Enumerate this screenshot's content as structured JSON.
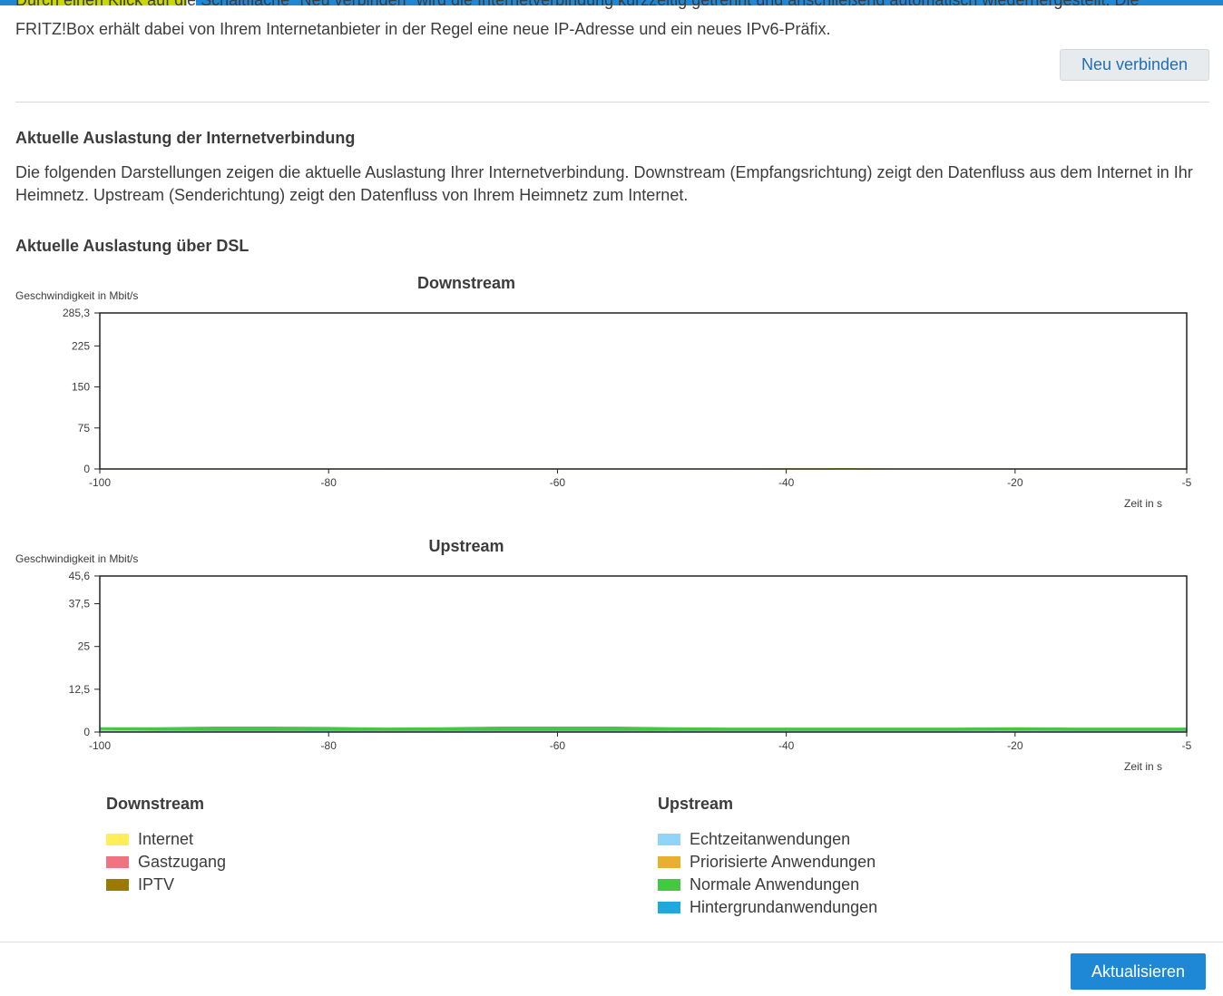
{
  "intro": {
    "cut_line": "Durch einen Klick auf die Schaltfläche \"Neu verbinden\" wird die Internetverbindung kurzzeitig getrennt und anschließend automatisch wiederhergestellt. Die",
    "text": "FRITZ!Box erhält dabei von Ihrem Internetanbieter in der Regel eine neue IP-Adresse und ein neues IPv6-Präfix.",
    "reconnect_label": "Neu verbinden"
  },
  "section": {
    "title": "Aktuelle Auslastung der Internetverbindung",
    "description": "Die folgenden Darstellungen zeigen die aktuelle Auslastung Ihrer Internetverbindung. Downstream (Empfangsrichtung) zeigt den Datenfluss aus dem Internet in Ihr Heimnetz. Upstream (Senderichtung) zeigt den Datenfluss von Ihrem Heimnetz zum Internet.",
    "dsl_title": "Aktuelle Auslastung über DSL"
  },
  "chart_data": [
    {
      "type": "area",
      "title": "Downstream",
      "ylabel": "Geschwindigkeit in Mbit/s",
      "xlabel": "Zeit in s",
      "ylim": [
        0,
        285.3
      ],
      "xlim": [
        -100,
        -5
      ],
      "y_ticks": [
        "0",
        "75",
        "150",
        "225",
        "285,3"
      ],
      "y_tick_values": [
        0,
        75,
        150,
        225,
        285.3
      ],
      "x_ticks": [
        "-100",
        "-80",
        "-60",
        "-40",
        "-20",
        "-5"
      ],
      "x_tick_values": [
        -100,
        -80,
        -60,
        -40,
        -20,
        -5
      ],
      "x": [
        -100,
        -95,
        -90,
        -85,
        -80,
        -75,
        -70,
        -65,
        -60,
        -55,
        -50,
        -45,
        -40,
        -35,
        -30,
        -25,
        -20,
        -15,
        -10,
        -5
      ],
      "series": [
        {
          "name": "Internet",
          "color": "#ffee58",
          "values": [
            1.2,
            1.1,
            1.0,
            1.3,
            1.1,
            1.0,
            1.2,
            1.0,
            1.1,
            1.3,
            1.2,
            1.0,
            1.4,
            1.6,
            1.2,
            1.1,
            1.0,
            1.2,
            1.1,
            1.0
          ]
        },
        {
          "name": "Gastzugang",
          "color": "#f07480",
          "values": [
            0,
            0,
            0,
            0,
            0,
            0,
            0,
            0,
            0,
            0,
            0,
            0,
            0,
            0,
            0,
            0,
            0,
            0,
            0,
            0
          ]
        },
        {
          "name": "IPTV",
          "color": "#9a7a00",
          "values": [
            0,
            0,
            0,
            0,
            0,
            0,
            0,
            0,
            0,
            0,
            0,
            0,
            0,
            0,
            0,
            0,
            0,
            0,
            0,
            0
          ]
        }
      ]
    },
    {
      "type": "area",
      "title": "Upstream",
      "ylabel": "Geschwindigkeit in Mbit/s",
      "xlabel": "Zeit in s",
      "ylim": [
        0,
        45.6
      ],
      "xlim": [
        -100,
        -5
      ],
      "y_ticks": [
        "0",
        "12,5",
        "25",
        "37,5",
        "45,6"
      ],
      "y_tick_values": [
        0,
        12.5,
        25,
        37.5,
        45.6
      ],
      "x_ticks": [
        "-100",
        "-80",
        "-60",
        "-40",
        "-20",
        "-5"
      ],
      "x_tick_values": [
        -100,
        -80,
        -60,
        -40,
        -20,
        -5
      ],
      "x": [
        -100,
        -95,
        -90,
        -85,
        -80,
        -75,
        -70,
        -65,
        -60,
        -55,
        -50,
        -45,
        -40,
        -35,
        -30,
        -25,
        -20,
        -15,
        -10,
        -5
      ],
      "series": [
        {
          "name": "Echtzeitanwendungen",
          "color": "#90d4f8",
          "values": [
            0.6,
            0.4,
            0.3,
            0.3,
            0.3,
            0.3,
            0.3,
            0.3,
            0.3,
            0.3,
            0.3,
            0.3,
            0.3,
            0.3,
            0.3,
            0.3,
            0.4,
            0.3,
            0.3,
            0.3
          ]
        },
        {
          "name": "Priorisierte Anwendungen",
          "color": "#e8b030",
          "values": [
            0,
            0,
            0,
            0,
            0,
            0,
            0,
            0,
            0,
            0,
            0,
            0,
            0,
            0,
            0,
            0,
            0,
            0,
            0,
            0
          ]
        },
        {
          "name": "Normale Anwendungen",
          "color": "#44c844",
          "values": [
            0.8,
            1.0,
            1.3,
            1.3,
            1.2,
            1.0,
            1.1,
            1.3,
            1.3,
            1.3,
            1.1,
            1.0,
            1.0,
            1.0,
            1.0,
            1.0,
            1.0,
            1.0,
            1.0,
            1.0
          ]
        },
        {
          "name": "Hintergrundanwendungen",
          "color": "#1fa8dc",
          "values": [
            0,
            0,
            0,
            0,
            0,
            0,
            0,
            0,
            0,
            0,
            0,
            0,
            0,
            0,
            0,
            0,
            0,
            0,
            0,
            0
          ]
        }
      ]
    }
  ],
  "legend": {
    "downstream_title": "Downstream",
    "upstream_title": "Upstream",
    "downstream": [
      {
        "label": "Internet",
        "color": "#ffee58"
      },
      {
        "label": "Gastzugang",
        "color": "#f07480"
      },
      {
        "label": "IPTV",
        "color": "#9a7a00"
      }
    ],
    "upstream": [
      {
        "label": "Echtzeitanwendungen",
        "color": "#90d4f8"
      },
      {
        "label": "Priorisierte Anwendungen",
        "color": "#e8b030"
      },
      {
        "label": "Normale Anwendungen",
        "color": "#44c844"
      },
      {
        "label": "Hintergrundanwendungen",
        "color": "#1fa8dc"
      }
    ]
  },
  "footer": {
    "refresh_label": "Aktualisieren"
  }
}
